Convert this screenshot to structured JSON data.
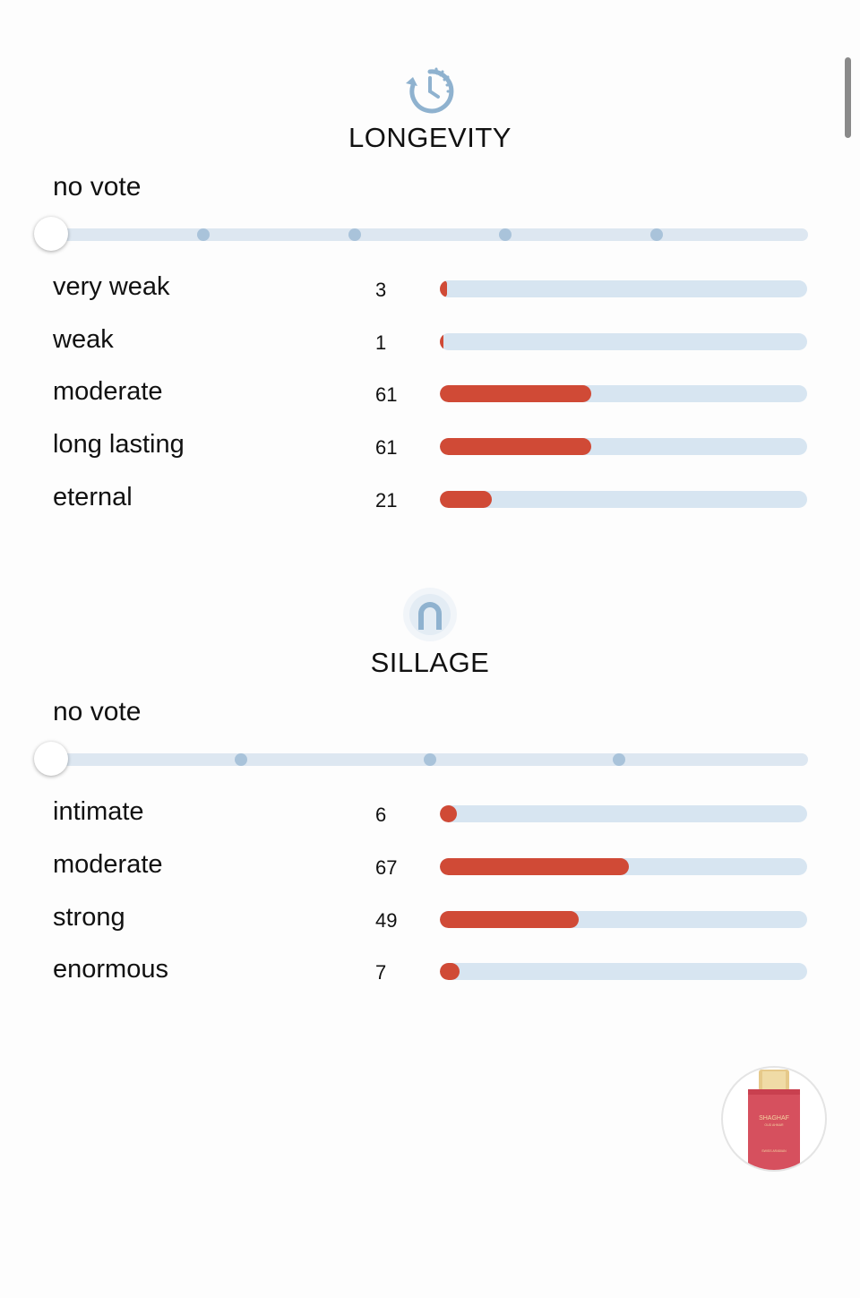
{
  "longevity": {
    "icon": "clock-timer-icon",
    "title": "LONGEVITY",
    "vote_label": "no vote",
    "slider_steps": 5,
    "max_count": 148,
    "rows": [
      {
        "label": "very weak",
        "count": "3",
        "value": 3
      },
      {
        "label": "weak",
        "count": "1",
        "value": 1
      },
      {
        "label": "moderate",
        "count": "61",
        "value": 61
      },
      {
        "label": "long lasting",
        "count": "61",
        "value": 61
      },
      {
        "label": "eternal",
        "count": "21",
        "value": 21
      }
    ]
  },
  "sillage": {
    "icon": "sillage-person-icon",
    "title": "SILLAGE",
    "vote_label": "no vote",
    "slider_steps": 4,
    "max_count": 130,
    "rows": [
      {
        "label": "intimate",
        "count": "6",
        "value": 6
      },
      {
        "label": "moderate",
        "count": "67",
        "value": 67
      },
      {
        "label": "strong",
        "count": "49",
        "value": 49
      },
      {
        "label": "enormous",
        "count": "7",
        "value": 7
      }
    ]
  },
  "colors": {
    "bar_fill": "#d04a36",
    "bar_track": "#d7e5f1",
    "icon_accent": "#8fb2cf"
  },
  "product": {
    "icon": "perfume-bottle-thumbnail",
    "bottle_text": "SHAGHAF",
    "bottle_subtext": "OUD AHMAR",
    "brand_text": "SWISS ARABIAN"
  }
}
